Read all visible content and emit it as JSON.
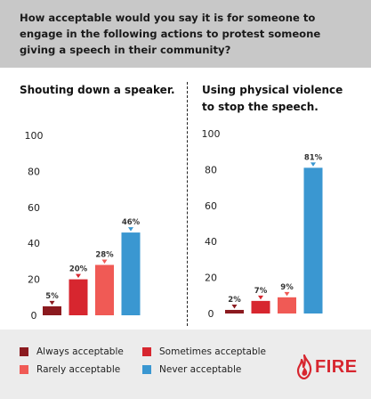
{
  "header": {
    "question": "How acceptable would you say it is for someone to engage in the following actions to protest someone giving a speech in their community?"
  },
  "legend": {
    "items": [
      {
        "label": "Always acceptable",
        "color": "#8b1a1f"
      },
      {
        "label": "Sometimes acceptable",
        "color": "#d7262f"
      },
      {
        "label": "Rarely acceptable",
        "color": "#f05a55"
      },
      {
        "label": "Never acceptable",
        "color": "#3a97d1"
      }
    ]
  },
  "brand": {
    "logo_text": "FIRE",
    "color": "#d7262f"
  },
  "chart_data": [
    {
      "type": "bar",
      "title": "Shouting down a speaker.",
      "categories": [
        "Always acceptable",
        "Sometimes acceptable",
        "Rarely acceptable",
        "Never acceptable"
      ],
      "values": [
        5,
        20,
        28,
        46
      ],
      "labels": [
        "5%",
        "20%",
        "28%",
        "46%"
      ],
      "colors": [
        "#8b1a1f",
        "#d7262f",
        "#f05a55",
        "#3a97d1"
      ],
      "yticks": [
        0,
        20,
        40,
        60,
        80,
        100
      ],
      "ylim": [
        0,
        100
      ],
      "xlabel": "",
      "ylabel": ""
    },
    {
      "type": "bar",
      "title": "Using physical violence to stop the speech.",
      "categories": [
        "Always acceptable",
        "Sometimes acceptable",
        "Rarely acceptable",
        "Never acceptable"
      ],
      "values": [
        2,
        7,
        9,
        81
      ],
      "labels": [
        "2%",
        "7%",
        "9%",
        "81%"
      ],
      "colors": [
        "#8b1a1f",
        "#d7262f",
        "#f05a55",
        "#3a97d1"
      ],
      "yticks": [
        0,
        20,
        40,
        60,
        80,
        100
      ],
      "ylim": [
        0,
        100
      ],
      "xlabel": "",
      "ylabel": ""
    }
  ]
}
